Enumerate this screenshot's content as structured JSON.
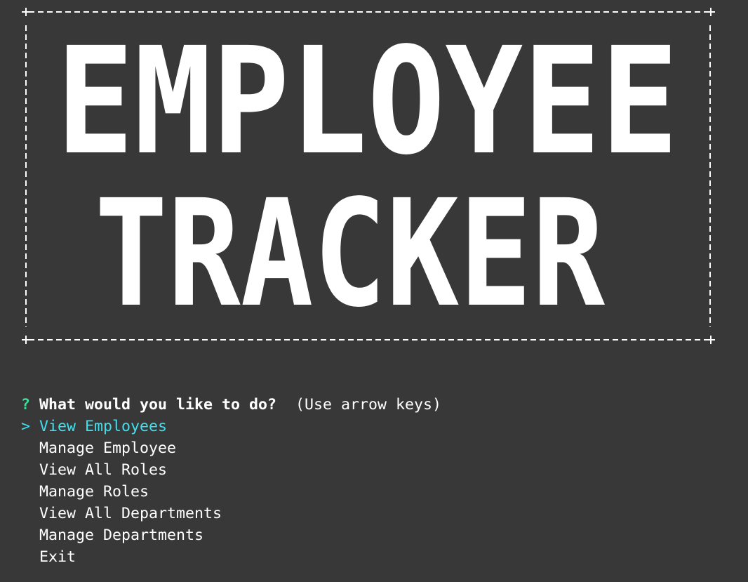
{
  "banner": {
    "lines": [
      "EMPLOYEE",
      "TRACKER"
    ]
  },
  "prompt": {
    "marker": "?",
    "question": "What would you like to do?",
    "hint": "(Use arrow keys)"
  },
  "menu": {
    "pointer": ">",
    "items": [
      "View Employees",
      "Manage Employee",
      "View All Roles",
      "Manage Roles",
      "View All Departments",
      "Manage Departments",
      "Exit"
    ]
  }
}
